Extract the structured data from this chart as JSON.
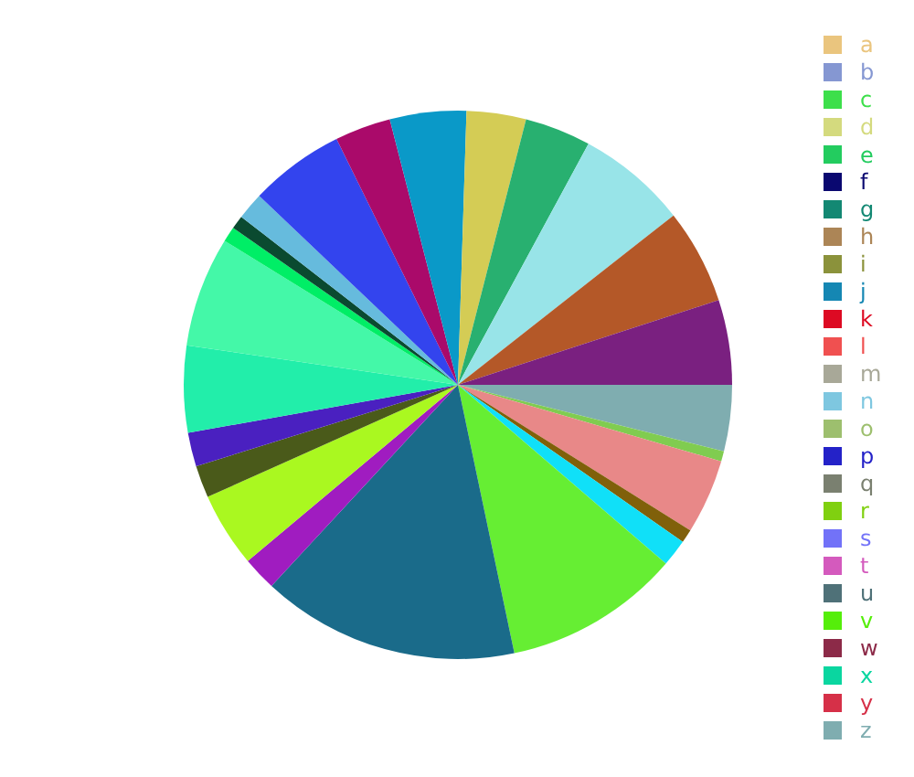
{
  "chart_data": [
    {
      "type": "pie",
      "categories": [
        null,
        null,
        null,
        null,
        null,
        null,
        null,
        null,
        null,
        null,
        null,
        null,
        null,
        null,
        null,
        null,
        null,
        null,
        null,
        null,
        null,
        null,
        null,
        null
      ],
      "values": [
        3.9,
        0.6,
        4.4,
        0.8,
        1.6,
        10.4,
        15.2,
        2.0,
        4.4,
        1.9,
        2.0,
        5.1,
        6.5,
        0.9,
        0.8,
        1.6,
        5.6,
        3.3,
        4.5,
        3.5,
        3.9,
        6.5,
        5.6,
        5.0
      ],
      "colors": [
        "#7fadb0",
        "#80cc50",
        "#e88888",
        "#80600a",
        "#10e0f8",
        "#66ee33",
        "#1a6b8a",
        "#a01cc0",
        "#aaf820",
        "#4a5a1a",
        "#4a20c0",
        "#22eeaa",
        "#44f8a8",
        "#00ee66",
        "#0a4a30",
        "#66bbdd",
        "#3344ee",
        "#aa0a6a",
        "#0a99c8",
        "#d4cc55",
        "#28b070",
        "#98e4e8",
        "#b45828",
        "#7a2080"
      ]
    },
    {
      "type": "other",
      "categories": [
        "a",
        "b",
        "c",
        "d",
        "e",
        "f",
        "g",
        "h",
        "i",
        "j",
        "k",
        "l",
        "m",
        "n",
        "o",
        "p",
        "q",
        "r",
        "s",
        "t",
        "u",
        "v",
        "w",
        "x",
        "y",
        "z"
      ],
      "colors": [
        "#eac57e",
        "#8597d2",
        "#3ddf4b",
        "#d4da7e",
        "#23cc5f",
        "#0a0870",
        "#138873",
        "#ac8556",
        "#8b923b",
        "#1587b3",
        "#dd0a23",
        "#f05050",
        "#a8a898",
        "#7ec7e0",
        "#9dbf6e",
        "#2422c8",
        "#7a8070",
        "#80d010",
        "#7272f8",
        "#d45abd",
        "#4f7178",
        "#55ee0a",
        "#8c2a48",
        "#0ad6a0",
        "#d63048",
        "#7fadb0"
      ]
    }
  ]
}
